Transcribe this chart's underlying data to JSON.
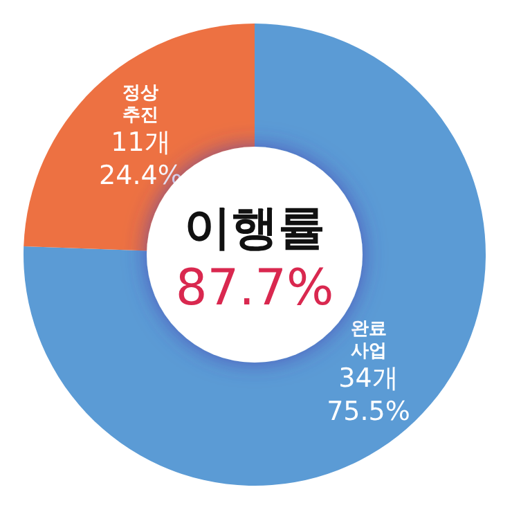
{
  "chart_data": {
    "type": "donut",
    "title": "이행률",
    "subtitle": "87.7%",
    "categories": [
      "완료 사업",
      "정상 추진"
    ],
    "values": [
      75.5,
      24.4
    ],
    "colors": [
      "#5b9bd5",
      "#ed7142"
    ],
    "value_labels": [
      "34개\n75.5%",
      "11개\n24.4%"
    ]
  }
}
